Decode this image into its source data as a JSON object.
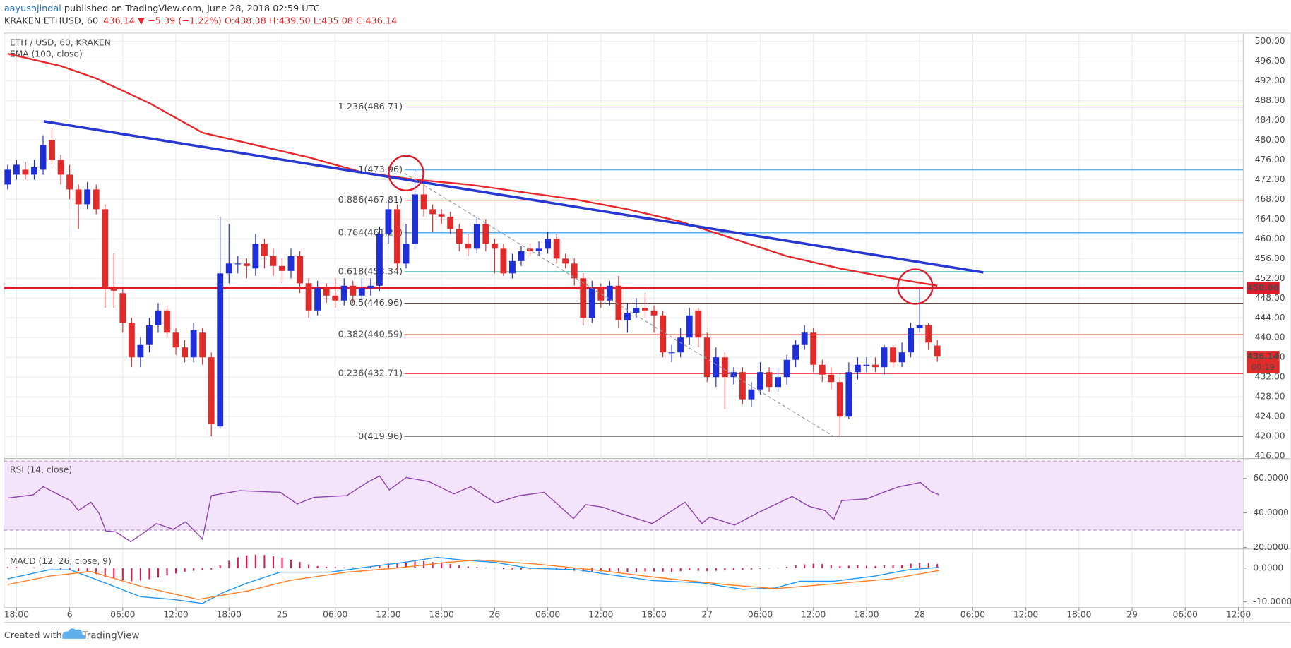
{
  "header": {
    "author": "aayushjindal",
    "published": " published on TradingView.com, June 28, 2018 02:59 UTC",
    "symbol": "KRAKEN:ETHUSD, 60",
    "quote": "436.14 ▼ −5.39 (−1.22%) O:438.38 H:439.50 L:435.08 C:436.14"
  },
  "footer": {
    "created": "Created with",
    "brand": "TradingView"
  },
  "chart_data": [
    {
      "type": "candlestick",
      "title": "ETH / USD, 60, KRAKEN",
      "grid": true,
      "up_color": "#1e2ed8",
      "down_color": "#e12b2b",
      "x": [
        -1,
        0,
        1,
        2,
        3,
        4,
        5,
        6,
        7,
        8,
        9,
        10,
        11,
        12,
        13,
        14,
        15,
        16,
        17,
        18,
        19,
        20,
        21,
        22,
        23,
        24,
        25,
        26,
        27,
        28,
        29,
        30,
        31,
        32,
        33,
        34,
        35,
        36,
        37,
        38,
        39,
        40,
        41,
        42,
        43,
        44,
        45,
        46,
        47,
        48,
        49,
        50,
        51,
        52,
        53,
        54,
        55,
        56,
        57,
        58,
        59,
        60,
        61,
        62,
        63,
        64,
        65,
        66,
        67,
        68,
        69,
        70,
        71,
        72,
        73,
        74,
        75,
        76,
        77,
        78,
        79,
        80,
        81,
        82,
        83,
        84,
        85,
        86,
        87,
        88,
        89,
        90,
        91,
        92,
        93,
        94,
        95,
        96,
        97,
        98,
        99,
        100,
        101,
        102,
        103,
        104
      ],
      "open": [
        471,
        473,
        474,
        473,
        474,
        480,
        476,
        473,
        470,
        467,
        470,
        466,
        450,
        449,
        443,
        436,
        438.5,
        442.5,
        445.5,
        441,
        438,
        436,
        441,
        436,
        422,
        453,
        455,
        455,
        454,
        459,
        456.5,
        454.5,
        453.5,
        456.5,
        451,
        445.5,
        450,
        448.5,
        447.5,
        450.5,
        448.5,
        450,
        450.5,
        461,
        466,
        455,
        459,
        469,
        466,
        465,
        464.5,
        462,
        459,
        458,
        463,
        459,
        458,
        453,
        455.5,
        458,
        457.5,
        458,
        460,
        456,
        455,
        452,
        444,
        450,
        447.5,
        450.5,
        443.5,
        445,
        446,
        445.5,
        444.5,
        437,
        437,
        440,
        445.5,
        440,
        432,
        436,
        432,
        433,
        427.5,
        429.5,
        433,
        430,
        432,
        435.5,
        438.5,
        441,
        434.5,
        432.5,
        431,
        424,
        433,
        434.5,
        434.5,
        434,
        438,
        435,
        437,
        442,
        442.5,
        438.38
      ],
      "high": [
        475,
        476,
        475.5,
        476,
        481,
        482.5,
        477,
        475,
        471,
        471.5,
        471,
        467,
        457,
        450,
        444,
        440,
        444,
        447,
        446.5,
        442,
        439.5,
        443,
        442,
        437,
        464.5,
        463,
        456.5,
        456,
        461,
        460,
        458,
        456,
        458,
        457.5,
        452,
        451.5,
        451,
        452,
        452,
        451.5,
        452,
        452,
        462.5,
        467.5,
        467,
        463,
        473.96,
        471,
        467,
        466,
        465.5,
        463,
        461,
        464.5,
        464,
        460,
        459,
        457,
        458.5,
        459,
        459.5,
        461.5,
        461,
        457,
        456,
        453,
        451.5,
        451,
        451.5,
        452.5,
        447,
        448,
        449,
        446.5,
        445.5,
        438.5,
        442,
        446,
        446,
        441,
        438,
        437,
        434,
        434,
        431,
        435,
        434,
        434,
        436.5,
        439.5,
        442.5,
        442,
        435.5,
        434,
        432,
        435,
        436,
        436,
        436,
        438.5,
        438.5,
        439,
        443,
        450,
        443,
        439.5
      ],
      "low": [
        470,
        472,
        472,
        472,
        473,
        475,
        471,
        468,
        462,
        466,
        465,
        446,
        446,
        441,
        434,
        434,
        437,
        441,
        440,
        436.5,
        435,
        435,
        434.5,
        420,
        421.5,
        451,
        453,
        452,
        452.5,
        454,
        452.5,
        451,
        452,
        449,
        444,
        444.5,
        447,
        446,
        446.5,
        447,
        447.5,
        448.5,
        449.5,
        459,
        453.5,
        454,
        458,
        464.5,
        461.5,
        463,
        461,
        457.5,
        456.5,
        457,
        457.5,
        453,
        452.5,
        452,
        454.5,
        456.5,
        456.5,
        457,
        455,
        454,
        450.5,
        442.5,
        443,
        446,
        446.5,
        442,
        441,
        444,
        444,
        441,
        436,
        435,
        436,
        438.5,
        438,
        431,
        430,
        425.5,
        430.5,
        426.5,
        426,
        428.5,
        429,
        429,
        430.5,
        434,
        437.5,
        433,
        431,
        429.5,
        420,
        423.5,
        431.5,
        433,
        433,
        432.5,
        434,
        434,
        436,
        441,
        437.5,
        435.08
      ],
      "close": [
        474,
        475,
        473,
        474.5,
        479,
        476,
        473,
        470,
        467,
        470,
        466,
        450,
        449.5,
        443,
        436,
        438.5,
        442.5,
        445.5,
        441,
        438,
        436,
        441.5,
        436,
        422.5,
        453,
        455,
        455,
        454.5,
        459,
        456.5,
        454.5,
        453.5,
        456.5,
        451,
        445.5,
        450,
        448.5,
        447.5,
        450.5,
        448.5,
        450,
        450.5,
        461,
        466,
        455,
        459,
        469,
        466,
        465,
        464.5,
        462,
        459,
        458,
        463,
        459,
        458,
        453,
        455.5,
        457.5,
        457.5,
        458,
        460,
        456,
        455,
        452,
        444,
        450,
        447.5,
        450.5,
        443.5,
        445,
        446,
        445.5,
        444.5,
        437,
        437,
        440,
        444.5,
        440,
        432,
        436,
        432,
        433,
        427.5,
        429.5,
        433,
        430,
        432,
        435.5,
        438.5,
        441,
        434.5,
        432.5,
        431,
        424,
        433,
        434.5,
        434.5,
        434,
        438,
        435,
        437,
        442,
        442.5,
        439,
        436.14
      ],
      "ema": {
        "name": "EMA (100, close)",
        "color": "#e8262b",
        "x": [
          -1,
          5,
          9,
          15,
          21,
          27,
          33,
          39,
          45,
          51,
          57,
          63,
          69,
          75,
          81,
          87,
          93,
          99,
          104
        ],
        "values": [
          497.5,
          495,
          492.5,
          487.5,
          481.5,
          479,
          476.5,
          473.5,
          472,
          471,
          469.5,
          468,
          466,
          463.5,
          460,
          456.5,
          454,
          452,
          450.5
        ]
      },
      "trendline": {
        "color": "#2637d4",
        "x": [
          3.07,
          109.2
        ],
        "values": [
          483.8,
          453.2
        ]
      },
      "projection": {
        "color": "#9a9a9a",
        "x": [
          43.8,
          92.3
        ],
        "values": [
          473.3,
          419.96
        ]
      },
      "fib_levels": [
        {
          "label": "1.236(486.71)",
          "value": 486.71,
          "color": "#a54fd0"
        },
        {
          "label": "1(473.96)",
          "value": 473.96,
          "color": "#4ea7e0"
        },
        {
          "label": "0.886(467.81)",
          "value": 467.81,
          "color": "#e53935"
        },
        {
          "label": "0.764(461.22)",
          "value": 461.22,
          "color": "#2f8fd6"
        },
        {
          "label": "0.618(453.34)",
          "value": 453.34,
          "color": "#26a69a"
        },
        {
          "label": "0.5(446.96)",
          "value": 446.96,
          "color": "#6d4c41"
        },
        {
          "label": "0.382(440.59)",
          "value": 440.59,
          "color": "#e53935"
        },
        {
          "label": "0.236(432.71)",
          "value": 432.71,
          "color": "#e53935"
        },
        {
          "label": "0(419.96)",
          "value": 419.96,
          "color": "#8a8a8a"
        }
      ],
      "resistance": {
        "value": 450.06,
        "color": "#e0192b"
      },
      "last_price": 436.14,
      "countdown": "00:19",
      "highlights": {
        "color": "#e0192b",
        "x": [
          44.0,
          101.5
        ],
        "values": [
          473.3,
          450.33
        ]
      },
      "xlim": [
        -1.4,
        138.55
      ],
      "xticks": [
        {
          "value": 0,
          "label": "18:00"
        },
        6,
        {
          "value": 12,
          "label": "06:00"
        },
        {
          "value": 18,
          "label": "12:00"
        },
        {
          "value": 24,
          "label": "18:00"
        },
        {
          "value": 30,
          "label": "25"
        },
        {
          "value": 36,
          "label": "06:00"
        },
        {
          "value": 42,
          "label": "12:00"
        },
        {
          "value": 48,
          "label": "18:00"
        },
        {
          "value": 54,
          "label": "26"
        },
        {
          "value": 60,
          "label": "06:00"
        },
        {
          "value": 66,
          "label": "12:00"
        },
        {
          "value": 72,
          "label": "18:00"
        },
        {
          "value": 78,
          "label": "27"
        },
        {
          "value": 84,
          "label": "06:00"
        },
        {
          "value": 90,
          "label": "12:00"
        },
        {
          "value": 96,
          "label": "18:00"
        },
        {
          "value": 102,
          "label": "28"
        },
        {
          "value": 108,
          "label": "06:00"
        },
        {
          "value": 114,
          "label": "12:00"
        },
        {
          "value": 120,
          "label": "18:00"
        },
        {
          "value": 126,
          "label": "29"
        },
        {
          "value": 132,
          "label": "06:00"
        },
        {
          "value": 138,
          "label": "12:00"
        }
      ],
      "ylim": [
        415.5,
        501.67
      ],
      "yticks": [
        {
          "value": 416,
          "label": "416.00"
        },
        {
          "value": 420,
          "label": "420.00"
        },
        {
          "value": 424,
          "label": "424.00"
        },
        {
          "value": 428,
          "label": "428.00"
        },
        {
          "value": 432,
          "label": "432.00"
        },
        {
          "value": 436,
          "label": "436.00"
        },
        {
          "value": 440,
          "label": "440.00"
        },
        {
          "value": 444,
          "label": "444.00"
        },
        {
          "value": 448,
          "label": "448.00"
        },
        {
          "value": 452,
          "label": "452.00"
        },
        {
          "value": 456,
          "label": "456.00"
        },
        {
          "value": 460,
          "label": "460.00"
        },
        {
          "value": 464,
          "label": "464.00"
        },
        {
          "value": 468,
          "label": "468.00"
        },
        {
          "value": 472,
          "label": "472.00"
        },
        {
          "value": 476,
          "label": "476.00"
        },
        {
          "value": 480,
          "label": "480.00"
        },
        {
          "value": 484,
          "label": "484.00"
        },
        {
          "value": 488,
          "label": "488.00"
        },
        {
          "value": 492,
          "label": "492.00"
        },
        {
          "value": 496,
          "label": "496.00"
        },
        {
          "value": 500,
          "label": "500.00"
        }
      ]
    },
    {
      "type": "line",
      "title": "RSI (14, close)",
      "grid": true,
      "band": [
        30,
        70
      ],
      "band_color": "#f3e4fb",
      "series": [
        {
          "color": "#8e44ad",
          "x": [
            -1.0,
            1.9,
            3.0,
            6.1,
            7.0,
            8.4,
            9.3,
            10.1,
            11.2,
            12.9,
            14.0,
            15.8,
            17.7,
            19.1,
            21.0,
            22.0,
            25.2,
            29.8,
            31.7,
            33.6,
            37.3,
            39.6,
            41.0,
            42.1,
            44.0,
            46.6,
            49.4,
            51.3,
            54.1,
            56.8,
            59.6,
            62.9,
            64.3,
            66.2,
            68.0,
            71.8,
            75.5,
            77.4,
            78.3,
            81.1,
            83.9,
            87.6,
            89.5,
            91.3,
            92.3,
            93.2,
            96.0,
            97.9,
            99.7,
            102.1,
            103.3,
            104.2
          ],
          "values": [
            48.6,
            50.5,
            55.2,
            47.1,
            41.4,
            46.2,
            40,
            29.5,
            29,
            23.3,
            27.1,
            33.8,
            30.5,
            34.8,
            24.8,
            50,
            52.9,
            51.9,
            45.2,
            49,
            50,
            57.6,
            61.4,
            53.3,
            60.5,
            58.1,
            51,
            55.2,
            45.7,
            50,
            51.9,
            36.7,
            44.8,
            43.3,
            40,
            33.8,
            46.2,
            33.8,
            37.6,
            32.9,
            40.5,
            49.5,
            43.8,
            41.4,
            36.2,
            47.1,
            48.1,
            51.9,
            55.2,
            57.6,
            52.4,
            50.5
          ]
        }
      ],
      "ylim": [
        19.5,
        71
      ],
      "yticks": [
        {
          "value": 20,
          "label": "20.0000"
        },
        {
          "value": 40,
          "label": "40.0000"
        },
        {
          "value": 60,
          "label": "60.0000"
        }
      ]
    },
    {
      "type": "macd",
      "title": "MACD (12, 26, close, 9)",
      "grid": true,
      "histogram": {
        "color": "#e4174e",
        "values": [
          0.3,
          0.3,
          0.2,
          0.2,
          0.1,
          -0.1,
          -0.3,
          -0.6,
          -0.9,
          -1.3,
          -1.8,
          -2.6,
          -3.2,
          -3.6,
          -3.9,
          -3.7,
          -3.3,
          -2.8,
          -2.2,
          -1.6,
          -1.1,
          -0.8,
          -0.6,
          -0.4,
          0.8,
          2.2,
          3.2,
          3.8,
          4.0,
          3.9,
          3.5,
          3.1,
          2.5,
          1.8,
          1.1,
          0.6,
          0.4,
          0.3,
          0.2,
          0.2,
          0.3,
          0.4,
          0.9,
          1.4,
          1.5,
          1.6,
          2.0,
          2.1,
          1.8,
          1.5,
          1.2,
          0.8,
          0.5,
          0.3,
          0.1,
          -0.1,
          -0.3,
          -0.4,
          -0.4,
          -0.3,
          -0.3,
          -0.2,
          -0.4,
          -0.6,
          -0.8,
          -1.0,
          -1.0,
          -1.0,
          -0.9,
          -1.0,
          -1.1,
          -1.1,
          -1.0,
          -1.0,
          -1.1,
          -1.1,
          -0.9,
          -0.7,
          -0.8,
          -0.9,
          -0.8,
          -0.7,
          -0.6,
          -0.5,
          -0.4,
          -0.2,
          -0.1,
          0.1,
          0.4,
          0.8,
          1.1,
          1.3,
          1.2,
          1.0,
          0.6,
          0.7,
          0.8,
          0.7,
          0.6,
          0.8,
          0.9,
          1.0,
          1.3,
          1.6,
          1.5,
          1.2
        ]
      },
      "series": [
        {
          "color": "#2196f3",
          "x": [
            -1.0,
            3.7,
            6.1,
            9.3,
            14.0,
            17.7,
            21.0,
            23.3,
            26.1,
            29.8,
            35.4,
            40.1,
            43.8,
            47.5,
            50.3,
            54.1,
            57.8,
            63.4,
            67.1,
            71.8,
            77.4,
            82.0,
            85.7,
            88.5,
            92.3,
            96.9,
            100.7,
            104.2
          ],
          "values": [
            -3.2,
            -0.5,
            -0.5,
            -3.7,
            -8.5,
            -9.3,
            -10.5,
            -7.3,
            -4.4,
            -1.2,
            -1.2,
            0.5,
            1.7,
            3.2,
            2.4,
            1.7,
            0,
            -0.5,
            -2,
            -3.7,
            -4.4,
            -6.3,
            -5.9,
            -3.9,
            -3.9,
            -2.4,
            -0.5,
            0.2
          ]
        },
        {
          "color": "#ff7f27",
          "x": [
            -1.0,
            3.7,
            8.4,
            14.0,
            20.5,
            26.1,
            30.8,
            37.3,
            42.9,
            48.5,
            52.2,
            58.7,
            65.2,
            72.7,
            80.1,
            85.7,
            91.3,
            98.8,
            104.2
          ],
          "values": [
            -4.9,
            -2.4,
            -1,
            -5.4,
            -9.3,
            -6.8,
            -3.7,
            -1.2,
            0,
            1.7,
            2.4,
            1.2,
            -0.5,
            -2.9,
            -4.9,
            -6.1,
            -4.9,
            -3.2,
            -0.7
          ]
        }
      ],
      "ylim": [
        -11.7,
        5.4
      ],
      "yticks": [
        {
          "value": -10,
          "label": "-10.0000"
        },
        {
          "value": 0,
          "label": "0.0000"
        }
      ]
    }
  ]
}
